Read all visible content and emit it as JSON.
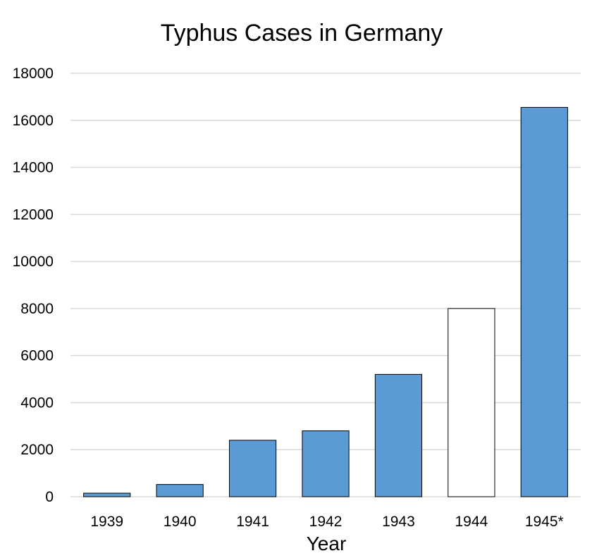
{
  "chart_data": {
    "type": "bar",
    "title": "Typhus Cases in Germany",
    "xlabel": "Year",
    "ylabel": "",
    "categories": [
      "1939",
      "1940",
      "1941",
      "1942",
      "1943",
      "1944",
      "1945*"
    ],
    "values": [
      150,
      520,
      2400,
      2800,
      5200,
      8000,
      16550
    ],
    "ylim": [
      0,
      18000
    ],
    "yticks": [
      0,
      2000,
      4000,
      6000,
      8000,
      10000,
      12000,
      14000,
      16000,
      18000
    ],
    "grid": true,
    "legend": "none",
    "bar_colors": [
      "#5b9bd5",
      "#5b9bd5",
      "#5b9bd5",
      "#5b9bd5",
      "#5b9bd5",
      "#ffffff",
      "#5b9bd5"
    ],
    "bar_outline_color": "#000000",
    "grid_color": "#d9d9d9"
  }
}
